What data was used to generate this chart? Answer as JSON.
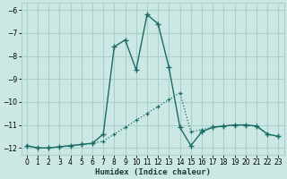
{
  "xlabel": "Humidex (Indice chaleur)",
  "background_color": "#cce8e4",
  "grid_color": "#aad0cc",
  "line_color": "#1a6b65",
  "xlim": [
    -0.5,
    23.5
  ],
  "ylim": [
    -12.3,
    -5.7
  ],
  "yticks": [
    -12,
    -11,
    -10,
    -9,
    -8,
    -7,
    -6
  ],
  "xticks": [
    0,
    1,
    2,
    3,
    4,
    5,
    6,
    7,
    8,
    9,
    10,
    11,
    12,
    13,
    14,
    15,
    16,
    17,
    18,
    19,
    20,
    21,
    22,
    23
  ],
  "series1_x": [
    0,
    1,
    2,
    3,
    4,
    5,
    6,
    7,
    8,
    9,
    10,
    11,
    12,
    13,
    14,
    15,
    16,
    17,
    18,
    19,
    20,
    21,
    22,
    23
  ],
  "series1_y": [
    -11.9,
    -12.0,
    -12.0,
    -11.95,
    -11.9,
    -11.85,
    -11.8,
    -11.7,
    -11.4,
    -11.1,
    -10.8,
    -10.5,
    -10.2,
    -9.9,
    -9.6,
    -11.3,
    -11.2,
    -11.1,
    -11.05,
    -11.0,
    -11.0,
    -11.05,
    -11.4,
    -11.5
  ],
  "series2_x": [
    0,
    1,
    2,
    3,
    4,
    5,
    6,
    7,
    8,
    9,
    10,
    11,
    12,
    13,
    14,
    15,
    16,
    17,
    18,
    19,
    20,
    21,
    22,
    23
  ],
  "series2_y": [
    -11.9,
    -12.0,
    -12.0,
    -11.95,
    -11.9,
    -11.85,
    -11.8,
    -11.4,
    -7.6,
    -7.3,
    -8.6,
    -6.2,
    -6.6,
    -8.5,
    -11.1,
    -11.9,
    -11.3,
    -11.1,
    -11.05,
    -11.0,
    -11.0,
    -11.05,
    -11.4,
    -11.5
  ]
}
